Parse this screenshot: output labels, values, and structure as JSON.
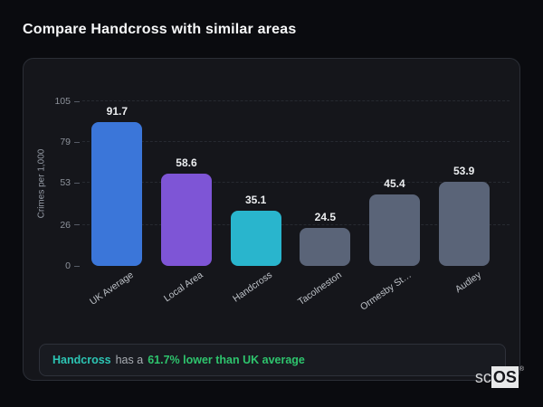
{
  "page": {
    "title": "Compare Handcross with similar areas",
    "background": "#0a0b0f"
  },
  "chart_data": {
    "type": "bar",
    "title": "Compare Handcross with similar areas",
    "categories": [
      "UK Average",
      "Local Area",
      "Handcross",
      "Tacolneston",
      "Ormesby St…",
      "Audley"
    ],
    "values": [
      91.7,
      58.6,
      35.1,
      24.5,
      45.4,
      53.9
    ],
    "value_labels": [
      "91.7",
      "58.6",
      "35.1",
      "24.5",
      "45.4",
      "53.9"
    ],
    "bar_colors": [
      "#3b76d9",
      "#7e55d6",
      "#29b5cd",
      "#5a6478",
      "#5a6478",
      "#5a6478"
    ],
    "xlabel": "",
    "ylabel": "Crimes per 1,000",
    "yticks": [
      0,
      26,
      53,
      79,
      105
    ],
    "ylim": [
      0,
      105
    ],
    "grid": "dashed-horizontal",
    "legend": "none"
  },
  "footer_note": {
    "area_name": "Handcross",
    "connector": "has a",
    "stat_text": "61.7% lower than UK average",
    "area_color": "#2cc5b4",
    "stat_color": "#2ec46d"
  },
  "logo": {
    "prefix": "sc",
    "suffix": "OS",
    "registered": "®"
  }
}
